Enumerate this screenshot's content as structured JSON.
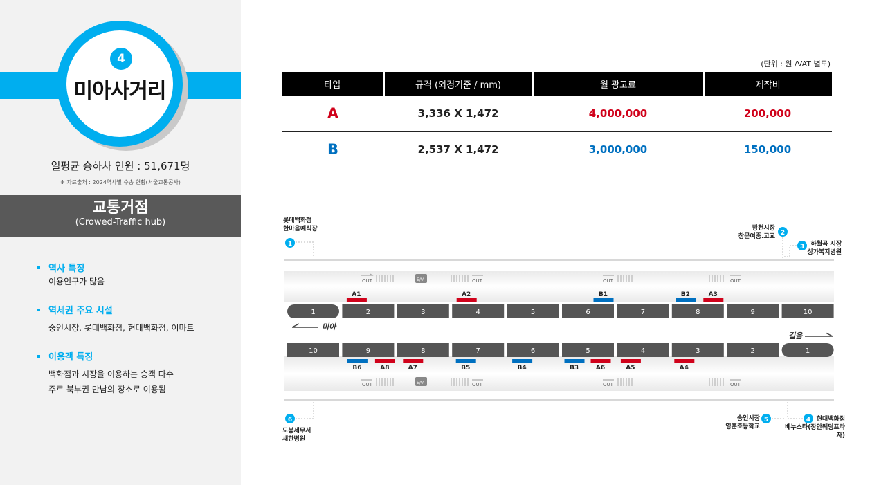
{
  "station": {
    "number": "4",
    "name": "미아사거리"
  },
  "ridership": "일평균 승하차 인원 : 51,671명",
  "source": "※ 자료출처 : 2024역사별 수송 현황(서울교통공사)",
  "hub": {
    "title": "교통거점",
    "subtitle": "(Crowed-Traffic hub)"
  },
  "features": [
    {
      "heading": "역사 특징",
      "lines": [
        "이용인구가 많음"
      ]
    },
    {
      "heading": "역세권 주요 시설",
      "lines": [
        "숭인시장, 롯데백화점, 현대백화점, 이마트"
      ]
    },
    {
      "heading": "이용객 특징",
      "lines": [
        "백화점과 시장을 이용하는 승객 다수",
        "주로 북부권 만남의 장소로 이용됨"
      ]
    }
  ],
  "unit_note": "(단위 : 원 /VAT 별도)",
  "table": {
    "headers": [
      "타입",
      "규격 (외경기준 / mm)",
      "월 광고료",
      "제작비"
    ],
    "rows": [
      {
        "type": "A",
        "size": "3,336 X 1,472",
        "monthly": "4,000,000",
        "production": "200,000"
      },
      {
        "type": "B",
        "size": "2,537 X 1,472",
        "monthly": "3,000,000",
        "production": "150,000"
      }
    ]
  },
  "colors": {
    "accent": "#00aeef",
    "red": "#d0021b",
    "blue": "#0070c0",
    "hub_bg": "#595959"
  },
  "map": {
    "direction_left": "미아",
    "direction_right": "길음",
    "top_cars": [
      "1",
      "2",
      "3",
      "4",
      "5",
      "6",
      "7",
      "8",
      "9",
      "10"
    ],
    "bottom_cars": [
      "10",
      "9",
      "8",
      "7",
      "6",
      "5",
      "4",
      "3",
      "2",
      "1"
    ],
    "top_ads": [
      {
        "label": "A1",
        "type": "A",
        "car": "2"
      },
      {
        "label": "A2",
        "type": "A",
        "car": "4"
      },
      {
        "label": "B1",
        "type": "B",
        "car": "6"
      },
      {
        "label": "B2",
        "type": "B",
        "car": "8"
      },
      {
        "label": "A3",
        "type": "A",
        "car": "8"
      }
    ],
    "bottom_ads": [
      {
        "label": "B6",
        "type": "B",
        "car": "9"
      },
      {
        "label": "A8",
        "type": "A",
        "car": "9"
      },
      {
        "label": "A7",
        "type": "A",
        "car": "8"
      },
      {
        "label": "B5",
        "type": "B",
        "car": "7"
      },
      {
        "label": "B4",
        "type": "B",
        "car": "6"
      },
      {
        "label": "B3",
        "type": "B",
        "car": "5"
      },
      {
        "label": "A6",
        "type": "A",
        "car": "5"
      },
      {
        "label": "A5",
        "type": "A",
        "car": "4"
      },
      {
        "label": "A4",
        "type": "A",
        "car": "3"
      }
    ],
    "exits": [
      {
        "num": "1",
        "lines": [
          "롯데백화점",
          "한마음예식장"
        ]
      },
      {
        "num": "2",
        "lines": [
          "방천시장",
          "창문여중.고교"
        ]
      },
      {
        "num": "3",
        "lines": [
          "하월곡 시장",
          "성가복지병원"
        ]
      },
      {
        "num": "4",
        "lines": [
          "현대백화점",
          "베누스타(장안웨딩프라자)"
        ]
      },
      {
        "num": "5",
        "lines": [
          "숭인시장",
          "영훈초등학교"
        ]
      },
      {
        "num": "6",
        "lines": [
          "도봉세무서",
          "새한병원"
        ]
      }
    ],
    "out_label": "OUT",
    "ev_label": "E/V"
  }
}
